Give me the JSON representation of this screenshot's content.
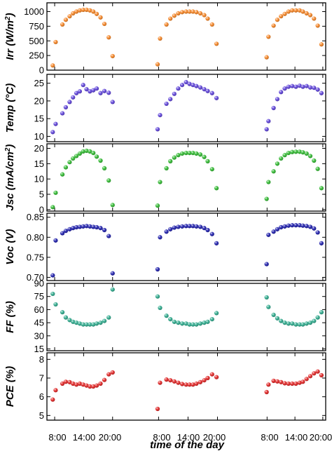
{
  "figure": {
    "xlabel": "time of the day",
    "xticks": [
      "8:00",
      "14:00",
      "20:00"
    ]
  },
  "chart_data": [
    {
      "type": "scatter",
      "ylabel": "Irr (W/m2)",
      "ylabel_main": "Irr (W/m",
      "ylabel_sup": "2",
      "ylabel_end": ")",
      "ylim": [
        0,
        1150
      ],
      "yticks": [
        0,
        250,
        500,
        750,
        1000
      ],
      "color": "#f58220",
      "days": [
        {
          "x": [
            7.6,
            8.2,
            9.6,
            10.3,
            11.1,
            11.8,
            12.5,
            13.2,
            13.9,
            14.6,
            15.3,
            16.0,
            16.7,
            17.5,
            18.3,
            19.2,
            20.0
          ],
          "y": [
            80,
            480,
            780,
            860,
            920,
            970,
            1000,
            1020,
            1030,
            1030,
            1020,
            1000,
            960,
            900,
            790,
            560,
            240
          ]
        },
        {
          "x": [
            7.8,
            8.3,
            9.6,
            10.4,
            11.2,
            12.0,
            12.8,
            13.6,
            14.3,
            15.0,
            15.7,
            16.5,
            17.3,
            18.0,
            18.9,
            19.8
          ],
          "y": [
            100,
            540,
            780,
            880,
            930,
            970,
            990,
            1000,
            1000,
            1000,
            990,
            970,
            940,
            880,
            780,
            450
          ]
        },
        {
          "x": [
            7.9,
            8.3,
            9.4,
            10.2,
            11.0,
            11.8,
            12.6,
            13.4,
            14.2,
            15.0,
            15.7,
            16.5,
            17.3,
            18.1,
            18.9,
            19.7
          ],
          "y": [
            220,
            570,
            760,
            860,
            920,
            960,
            1000,
            1020,
            1020,
            1020,
            1000,
            970,
            940,
            880,
            760,
            440
          ]
        }
      ]
    },
    {
      "type": "scatter",
      "ylabel": "Temp (°C)",
      "ylim": [
        8.5,
        27.5
      ],
      "yticks": [
        10,
        15,
        20,
        25
      ],
      "color": "#5b3fd8",
      "days": [
        {
          "x": [
            7.6,
            8.2,
            9.6,
            10.3,
            11.1,
            11.8,
            12.5,
            13.2,
            13.9,
            14.6,
            15.3,
            16.0,
            16.7,
            17.5,
            18.3,
            19.2,
            20.0
          ],
          "y": [
            11.2,
            13.5,
            16.5,
            18.2,
            19.7,
            21.0,
            22.2,
            22.7,
            24.5,
            23.3,
            22.7,
            23.0,
            23.5,
            22.2,
            22.8,
            22.3,
            19.7
          ]
        },
        {
          "x": [
            7.8,
            8.3,
            9.6,
            10.4,
            11.2,
            12.0,
            12.8,
            13.6,
            14.3,
            15.0,
            15.7,
            16.5,
            17.3,
            18.0,
            18.9,
            19.8
          ],
          "y": [
            12.0,
            16.0,
            19.2,
            20.5,
            22.0,
            23.5,
            24.5,
            25.3,
            24.8,
            24.5,
            24.2,
            23.8,
            23.3,
            22.8,
            22.2,
            20.8
          ]
        },
        {
          "x": [
            7.9,
            8.3,
            9.4,
            10.2,
            11.0,
            11.8,
            12.6,
            13.4,
            14.2,
            15.0,
            15.7,
            16.5,
            17.3,
            18.1,
            18.9,
            19.7
          ],
          "y": [
            12.0,
            14.3,
            18.0,
            20.5,
            22.5,
            23.5,
            24.0,
            24.2,
            24.0,
            24.3,
            24.0,
            24.2,
            23.8,
            23.7,
            23.2,
            22.2
          ]
        }
      ]
    },
    {
      "type": "scatter",
      "ylabel": "Jsc (mA/cm2)",
      "ylabel_main": "Jsc (mA/cm",
      "ylabel_sup": "2",
      "ylabel_end": ")",
      "ylim": [
        -0.5,
        21.5
      ],
      "yticks": [
        0,
        5,
        10,
        15,
        20
      ],
      "color": "#2db82d",
      "days": [
        {
          "x": [
            7.6,
            8.2,
            9.6,
            10.3,
            11.1,
            11.8,
            12.5,
            13.2,
            13.9,
            14.6,
            15.3,
            16.0,
            16.7,
            17.5,
            18.3,
            19.2,
            20.0
          ],
          "y": [
            0.8,
            5.5,
            11.5,
            13.8,
            15.5,
            16.7,
            17.5,
            18.3,
            19.0,
            19.2,
            19.0,
            18.5,
            17.3,
            16.0,
            13.5,
            9.5,
            1.5
          ]
        },
        {
          "x": [
            7.8,
            8.3,
            9.6,
            10.4,
            11.2,
            12.0,
            12.8,
            13.6,
            14.3,
            15.0,
            15.7,
            16.5,
            17.3,
            18.0,
            18.9,
            19.8
          ],
          "y": [
            1.3,
            9.0,
            13.5,
            15.8,
            17.0,
            17.8,
            18.3,
            18.5,
            18.5,
            18.5,
            18.3,
            18.0,
            17.2,
            15.8,
            13.2,
            7.0
          ]
        },
        {
          "x": [
            7.9,
            8.3,
            9.4,
            10.2,
            11.0,
            11.8,
            12.6,
            13.4,
            14.2,
            15.0,
            15.7,
            16.5,
            17.3,
            18.1,
            18.9,
            19.7
          ],
          "y": [
            3.5,
            9.0,
            12.5,
            15.0,
            16.7,
            17.8,
            18.5,
            18.8,
            18.9,
            18.9,
            18.7,
            18.3,
            17.5,
            16.0,
            13.3,
            7.0
          ]
        }
      ]
    },
    {
      "type": "scatter",
      "ylabel": "Voc (V)",
      "ylim": [
        0.692,
        0.86
      ],
      "yticks": [
        0.7,
        0.75,
        0.8,
        0.85
      ],
      "yticks_labels": [
        "0.70",
        "0.75",
        "0.80",
        "0.85"
      ],
      "color": "#1a1aaa",
      "days": [
        {
          "x": [
            7.6,
            8.2,
            9.6,
            10.3,
            11.1,
            11.8,
            12.5,
            13.2,
            13.9,
            14.6,
            15.3,
            16.0,
            16.7,
            17.5,
            18.3,
            19.2,
            20.0
          ],
          "y": [
            0.705,
            0.792,
            0.81,
            0.816,
            0.82,
            0.823,
            0.825,
            0.826,
            0.827,
            0.828,
            0.827,
            0.826,
            0.825,
            0.823,
            0.818,
            0.803,
            0.71
          ]
        },
        {
          "x": [
            7.8,
            8.3,
            9.6,
            10.4,
            11.2,
            12.0,
            12.8,
            13.6,
            14.3,
            15.0,
            15.7,
            16.5,
            17.3,
            18.0,
            18.9,
            19.8
          ],
          "y": [
            0.72,
            0.8,
            0.814,
            0.82,
            0.824,
            0.826,
            0.827,
            0.828,
            0.828,
            0.828,
            0.827,
            0.826,
            0.823,
            0.818,
            0.808,
            0.785
          ]
        },
        {
          "x": [
            7.9,
            8.3,
            9.4,
            10.2,
            11.0,
            11.8,
            12.6,
            13.4,
            14.2,
            15.0,
            15.7,
            16.5,
            17.3,
            18.1,
            18.9,
            19.7
          ],
          "y": [
            0.733,
            0.806,
            0.814,
            0.82,
            0.825,
            0.827,
            0.829,
            0.83,
            0.83,
            0.83,
            0.829,
            0.828,
            0.826,
            0.822,
            0.812,
            0.785
          ]
        }
      ]
    },
    {
      "type": "scatter",
      "ylabel": "FF (%)",
      "ylim": [
        13,
        90
      ],
      "yticks": [
        15,
        30,
        45,
        60,
        75,
        90
      ],
      "color": "#2aa88a",
      "days": [
        {
          "x": [
            7.6,
            8.2,
            9.6,
            10.3,
            11.1,
            11.8,
            12.5,
            13.2,
            13.9,
            14.6,
            15.3,
            16.0,
            16.7,
            17.5,
            18.3,
            19.2,
            20.0
          ],
          "y": [
            78,
            66,
            57,
            51,
            48,
            46,
            45,
            44,
            43,
            43,
            43,
            43,
            44,
            45,
            47,
            51,
            83
          ]
        },
        {
          "x": [
            7.8,
            8.3,
            9.6,
            10.4,
            11.2,
            12.0,
            12.8,
            13.6,
            14.3,
            15.0,
            15.7,
            16.5,
            17.3,
            18.0,
            18.9,
            19.8
          ],
          "y": [
            75,
            62,
            53,
            49,
            46,
            45,
            44,
            44,
            43,
            43,
            43,
            44,
            45,
            46,
            49,
            56
          ]
        },
        {
          "x": [
            7.9,
            8.3,
            9.4,
            10.2,
            11.0,
            11.8,
            12.6,
            13.4,
            14.2,
            15.0,
            15.7,
            16.5,
            17.3,
            18.1,
            18.9,
            19.7
          ],
          "y": [
            74,
            63,
            54,
            50,
            47,
            45,
            44,
            44,
            43,
            43,
            43,
            44,
            45,
            47,
            51,
            57
          ]
        }
      ]
    },
    {
      "type": "scatter",
      "ylabel": "PCE (%)",
      "ylim": [
        4.75,
        8.35
      ],
      "yticks": [
        5,
        6,
        7,
        8
      ],
      "color": "#e02020",
      "days": [
        {
          "x": [
            7.6,
            8.2,
            9.6,
            10.3,
            11.1,
            11.8,
            12.5,
            13.2,
            13.9,
            14.6,
            15.3,
            16.0,
            16.7,
            17.5,
            18.3,
            19.2,
            20.0
          ],
          "y": [
            5.85,
            6.35,
            6.7,
            6.8,
            6.78,
            6.7,
            6.65,
            6.7,
            6.65,
            6.6,
            6.55,
            6.55,
            6.6,
            6.7,
            6.9,
            7.2,
            7.3
          ]
        },
        {
          "x": [
            7.8,
            8.3,
            9.6,
            10.4,
            11.2,
            12.0,
            12.8,
            13.6,
            14.3,
            15.0,
            15.7,
            16.5,
            17.3,
            18.0,
            18.9,
            19.8
          ],
          "y": [
            5.35,
            6.75,
            6.92,
            6.88,
            6.82,
            6.75,
            6.68,
            6.65,
            6.65,
            6.65,
            6.7,
            6.78,
            6.88,
            7.0,
            7.2,
            7.05
          ]
        },
        {
          "x": [
            7.9,
            8.3,
            9.4,
            10.2,
            11.0,
            11.8,
            12.6,
            13.4,
            14.2,
            15.0,
            15.7,
            16.5,
            17.3,
            18.1,
            18.9,
            19.7
          ],
          "y": [
            6.25,
            6.65,
            6.85,
            6.82,
            6.78,
            6.72,
            6.7,
            6.7,
            6.7,
            6.75,
            6.8,
            6.95,
            7.1,
            7.25,
            7.35,
            7.15
          ]
        }
      ]
    }
  ]
}
